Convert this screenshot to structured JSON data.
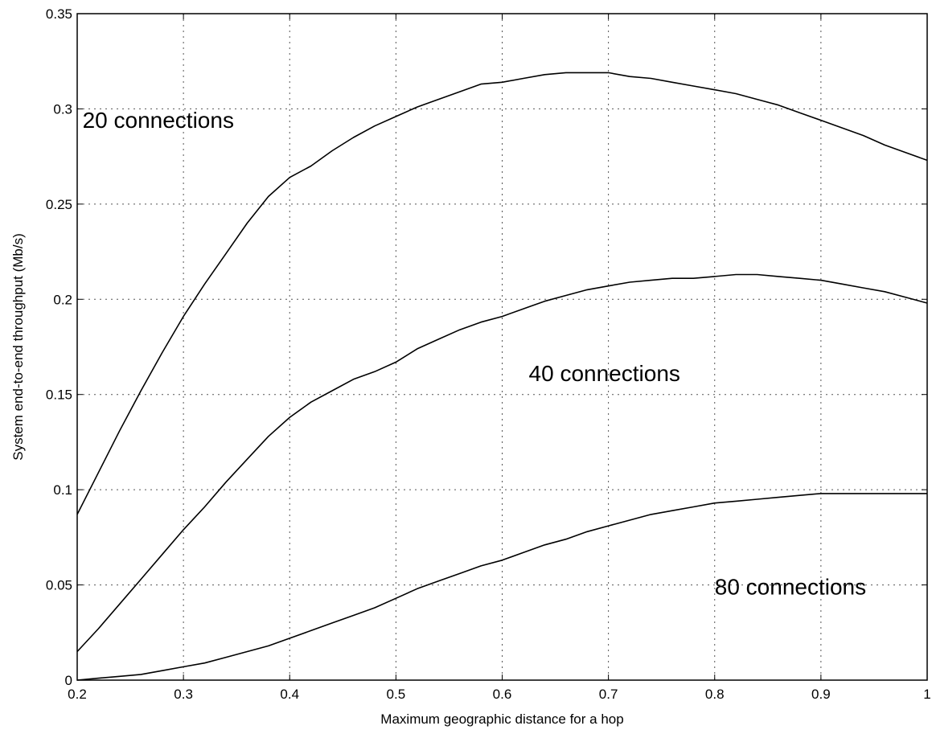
{
  "chart_data": {
    "type": "line",
    "xlabel": "Maximum geographic distance for a hop",
    "ylabel": "System end-to-end throughput (Mb/s)",
    "xlim": [
      0.2,
      1
    ],
    "ylim": [
      0,
      0.35
    ],
    "grid": true,
    "x_ticks": [
      "0.2",
      "0.3",
      "0.4",
      "0.5",
      "0.6",
      "0.7",
      "0.8",
      "0.9",
      "1"
    ],
    "y_ticks": [
      "0",
      "0.05",
      "0.1",
      "0.15",
      "0.2",
      "0.25",
      "0.3",
      "0.35"
    ],
    "annotations": [
      {
        "text": "20 connections",
        "x": 0.205,
        "y": 0.29
      },
      {
        "text": "40 connections",
        "x": 0.625,
        "y": 0.157
      },
      {
        "text": "80 connections",
        "x": 0.8,
        "y": 0.045
      }
    ],
    "x": [
      0.2,
      0.22,
      0.24,
      0.26,
      0.28,
      0.3,
      0.32,
      0.34,
      0.36,
      0.38,
      0.4,
      0.42,
      0.44,
      0.46,
      0.48,
      0.5,
      0.52,
      0.54,
      0.56,
      0.58,
      0.6,
      0.62,
      0.64,
      0.66,
      0.68,
      0.7,
      0.72,
      0.74,
      0.76,
      0.78,
      0.8,
      0.82,
      0.84,
      0.86,
      0.88,
      0.9,
      0.92,
      0.94,
      0.96,
      0.98,
      1.0
    ],
    "series": [
      {
        "values": [
          0.087,
          0.109,
          0.131,
          0.152,
          0.172,
          0.191,
          0.208,
          0.224,
          0.24,
          0.254,
          0.264,
          0.27,
          0.278,
          0.285,
          0.291,
          0.296,
          0.301,
          0.305,
          0.309,
          0.313,
          0.314,
          0.316,
          0.318,
          0.319,
          0.319,
          0.319,
          0.317,
          0.316,
          0.314,
          0.312,
          0.31,
          0.308,
          0.305,
          0.302,
          0.298,
          0.294,
          0.29,
          0.286,
          0.281,
          0.277,
          0.273
        ]
      },
      {
        "values": [
          0.015,
          0.027,
          0.04,
          0.053,
          0.066,
          0.079,
          0.091,
          0.104,
          0.116,
          0.128,
          0.138,
          0.146,
          0.152,
          0.158,
          0.162,
          0.167,
          0.174,
          0.179,
          0.184,
          0.188,
          0.191,
          0.195,
          0.199,
          0.202,
          0.205,
          0.207,
          0.209,
          0.21,
          0.211,
          0.211,
          0.212,
          0.213,
          0.213,
          0.212,
          0.211,
          0.21,
          0.208,
          0.206,
          0.204,
          0.201,
          0.198
        ]
      },
      {
        "values": [
          0.0,
          0.001,
          0.002,
          0.003,
          0.005,
          0.007,
          0.009,
          0.012,
          0.015,
          0.018,
          0.022,
          0.026,
          0.03,
          0.034,
          0.038,
          0.043,
          0.048,
          0.052,
          0.056,
          0.06,
          0.063,
          0.067,
          0.071,
          0.074,
          0.078,
          0.081,
          0.084,
          0.087,
          0.089,
          0.091,
          0.093,
          0.094,
          0.095,
          0.096,
          0.097,
          0.098,
          0.098,
          0.098,
          0.098,
          0.098,
          0.098
        ]
      }
    ]
  }
}
